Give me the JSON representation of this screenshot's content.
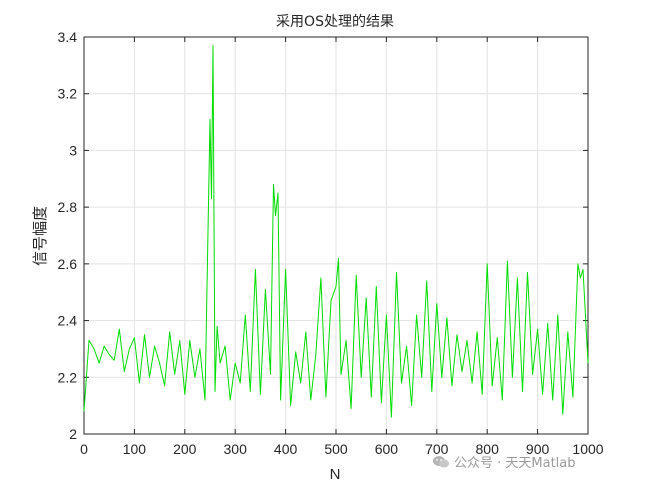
{
  "chart_data": {
    "type": "line",
    "title": "采用OS处理的结果",
    "xlabel": "N",
    "ylabel": "信号幅度",
    "xlim": [
      0,
      1000
    ],
    "ylim": [
      2,
      3.4
    ],
    "xticks": [
      0,
      100,
      200,
      300,
      400,
      500,
      600,
      700,
      800,
      900,
      1000
    ],
    "yticks": [
      2,
      2.2,
      2.4,
      2.6,
      2.8,
      3,
      3.2,
      3.4
    ],
    "xtick_labels": [
      "0",
      "100",
      "200",
      "300",
      "400",
      "500",
      "600",
      "700",
      "800",
      "900",
      "1000"
    ],
    "ytick_labels": [
      "2",
      "2.2",
      "2.4",
      "2.6",
      "2.8",
      "3",
      "3.2",
      "3.4"
    ],
    "grid": true,
    "line_color": "#00dd00",
    "series": [
      {
        "x": [
          0,
          10,
          20,
          30,
          40,
          50,
          60,
          70,
          80,
          90,
          100,
          110,
          120,
          130,
          140,
          150,
          160,
          170,
          180,
          190,
          200,
          210,
          220,
          230,
          240,
          250,
          253,
          256,
          260,
          264,
          270,
          280,
          290,
          300,
          310,
          320,
          330,
          340,
          350,
          360,
          370,
          376,
          380,
          385,
          390,
          400,
          410,
          420,
          430,
          440,
          450,
          460,
          470,
          480,
          490,
          500,
          505,
          510,
          520,
          530,
          540,
          550,
          560,
          570,
          580,
          590,
          600,
          610,
          620,
          630,
          640,
          650,
          660,
          670,
          680,
          690,
          700,
          710,
          720,
          730,
          740,
          750,
          760,
          770,
          780,
          790,
          800,
          810,
          820,
          830,
          840,
          850,
          860,
          870,
          880,
          890,
          900,
          910,
          920,
          930,
          940,
          950,
          960,
          970,
          980,
          985,
          990,
          1000
        ],
        "values": [
          2.08,
          2.33,
          2.3,
          2.25,
          2.31,
          2.28,
          2.26,
          2.37,
          2.22,
          2.3,
          2.34,
          2.18,
          2.35,
          2.2,
          2.31,
          2.25,
          2.17,
          2.36,
          2.21,
          2.33,
          2.14,
          2.33,
          2.2,
          2.3,
          2.12,
          3.11,
          2.83,
          3.37,
          2.15,
          2.38,
          2.25,
          2.31,
          2.12,
          2.25,
          2.18,
          2.42,
          2.15,
          2.58,
          2.14,
          2.51,
          2.21,
          2.88,
          2.77,
          2.85,
          2.12,
          2.58,
          2.1,
          2.29,
          2.18,
          2.36,
          2.12,
          2.28,
          2.55,
          2.13,
          2.47,
          2.52,
          2.62,
          2.21,
          2.33,
          2.09,
          2.56,
          2.2,
          2.48,
          2.13,
          2.52,
          2.11,
          2.42,
          2.06,
          2.57,
          2.18,
          2.31,
          2.1,
          2.42,
          2.2,
          2.54,
          2.15,
          2.46,
          2.2,
          2.41,
          2.17,
          2.35,
          2.22,
          2.33,
          2.18,
          2.36,
          2.14,
          2.6,
          2.17,
          2.34,
          2.12,
          2.61,
          2.2,
          2.55,
          2.15,
          2.57,
          2.21,
          2.37,
          2.14,
          2.39,
          2.12,
          2.42,
          2.07,
          2.36,
          2.13,
          2.6,
          2.55,
          2.58,
          2.25
        ]
      }
    ]
  },
  "watermark": {
    "text": "公众号 · 天天Matlab",
    "icon": "wechat-icon"
  }
}
